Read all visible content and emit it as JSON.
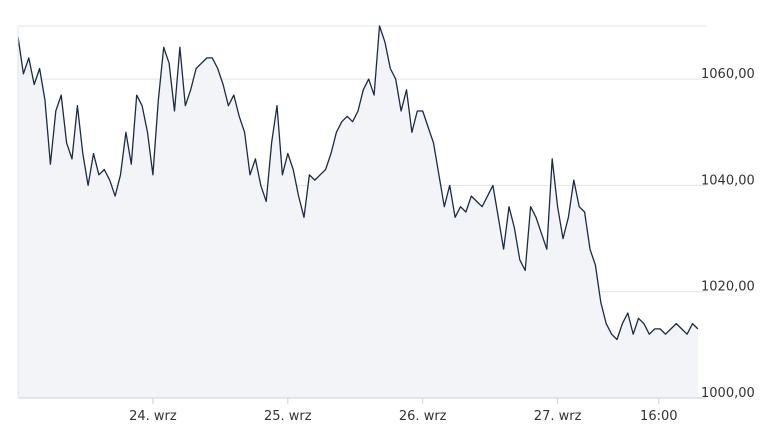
{
  "chart_data": {
    "type": "area",
    "title": "",
    "xlabel": "",
    "ylabel": "",
    "ylim": [
      1000,
      1070
    ],
    "y_ticks": [
      {
        "value": 1000,
        "label": "1000,00"
      },
      {
        "value": 1020,
        "label": "1020,00"
      },
      {
        "value": 1040,
        "label": "1040,00"
      },
      {
        "value": 1060,
        "label": "1060,00"
      }
    ],
    "x_ticks": [
      {
        "pos": 1.0,
        "label": "24. wrz"
      },
      {
        "pos": 2.0,
        "label": "25. wrz"
      },
      {
        "pos": 3.0,
        "label": "26. wrz"
      },
      {
        "pos": 4.0,
        "label": "27. wrz"
      },
      {
        "pos": 4.75,
        "label": "16:00"
      }
    ],
    "xlim": [
      0.0,
      5.1
    ],
    "grid": true,
    "legend": "none",
    "colors": {
      "line": "#1b2a47",
      "fill": "#f3f4f7",
      "grid": "#e1e4ea",
      "axis": "#c9d2e0"
    },
    "series": [
      {
        "x": [
          0.0,
          0.04,
          0.08,
          0.12,
          0.16,
          0.2,
          0.24,
          0.28,
          0.32,
          0.36,
          0.4,
          0.44,
          0.48,
          0.52,
          0.56,
          0.6,
          0.64,
          0.68,
          0.72,
          0.76,
          0.8,
          0.84,
          0.88,
          0.92,
          0.96,
          1.0,
          1.04,
          1.08,
          1.12,
          1.16,
          1.2,
          1.24,
          1.28,
          1.32,
          1.36,
          1.4,
          1.44,
          1.48,
          1.52,
          1.56,
          1.6,
          1.64,
          1.68,
          1.72,
          1.76,
          1.8,
          1.84,
          1.88,
          1.92,
          1.96,
          2.0,
          2.04,
          2.08,
          2.12,
          2.16,
          2.2,
          2.24,
          2.28,
          2.32,
          2.36,
          2.4,
          2.44,
          2.48,
          2.52,
          2.56,
          2.6,
          2.64,
          2.68,
          2.72,
          2.76,
          2.8,
          2.84,
          2.88,
          2.92,
          2.96,
          3.0,
          3.04,
          3.08,
          3.12,
          3.16,
          3.2,
          3.24,
          3.28,
          3.32,
          3.36,
          3.4,
          3.44,
          3.48,
          3.52,
          3.56,
          3.6,
          3.64,
          3.68,
          3.72,
          3.76,
          3.8,
          3.84,
          3.88,
          3.92,
          3.96,
          4.0,
          4.04,
          4.08,
          4.12,
          4.16,
          4.2,
          4.24,
          4.28,
          4.32,
          4.36,
          4.4,
          4.44,
          4.48,
          4.52,
          4.56,
          4.6,
          4.64,
          4.68,
          4.72,
          4.76,
          4.8,
          4.84,
          4.88,
          4.92,
          4.96,
          5.0,
          5.04
        ],
        "y": [
          1068,
          1061,
          1064,
          1059,
          1062,
          1056,
          1044,
          1054,
          1057,
          1048,
          1045,
          1055,
          1046,
          1040,
          1046,
          1042,
          1043,
          1041,
          1038,
          1042,
          1050,
          1044,
          1057,
          1055,
          1050,
          1042,
          1056,
          1066,
          1063,
          1054,
          1066,
          1055,
          1058,
          1062,
          1063,
          1064,
          1064,
          1062,
          1059,
          1055,
          1057,
          1053,
          1050,
          1042,
          1045,
          1040,
          1037,
          1048,
          1055,
          1042,
          1046,
          1043,
          1038,
          1034,
          1042,
          1041,
          1042,
          1043,
          1046,
          1050,
          1052,
          1053,
          1052,
          1054,
          1058,
          1060,
          1057,
          1070,
          1067,
          1062,
          1060,
          1054,
          1058,
          1050,
          1054,
          1054,
          1051,
          1048,
          1042,
          1036,
          1040,
          1034,
          1036,
          1035,
          1038,
          1037,
          1036,
          1038,
          1040,
          1034,
          1028,
          1036,
          1032,
          1026,
          1024,
          1036,
          1034,
          1031,
          1028,
          1045,
          1036,
          1030,
          1034,
          1041,
          1036,
          1035,
          1028,
          1025,
          1018,
          1014,
          1012,
          1011,
          1014,
          1016,
          1012,
          1015,
          1014,
          1012,
          1013,
          1013,
          1012,
          1013,
          1014,
          1013,
          1012,
          1014,
          1013
        ]
      }
    ]
  }
}
